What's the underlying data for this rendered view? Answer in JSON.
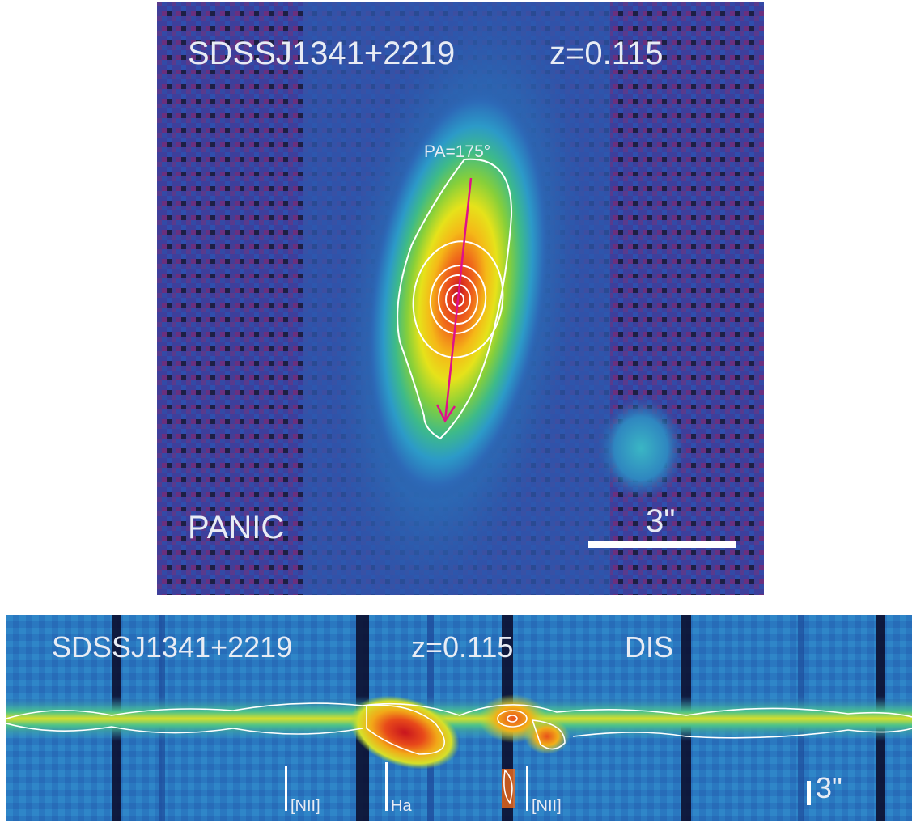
{
  "top_panel": {
    "object_name": "SDSSJ1341+2219",
    "redshift": "z=0.115",
    "position_angle": "PA=175°",
    "instrument": "PANIC",
    "scale_bar_label": "3\""
  },
  "bottom_panel": {
    "object_name": "SDSSJ1341+2219",
    "redshift": "z=0.115",
    "instrument": "DIS",
    "line_labels": [
      "[NII]",
      "Ha",
      "[NII]"
    ],
    "scale_bar_label": "3\""
  },
  "colors": {
    "background_dark": "#3a3f9a",
    "noise_purple": "#6a3a88",
    "contour": "#ffffff",
    "pa_arrow": "#e0108a",
    "label_text": "#e8ecf4"
  }
}
